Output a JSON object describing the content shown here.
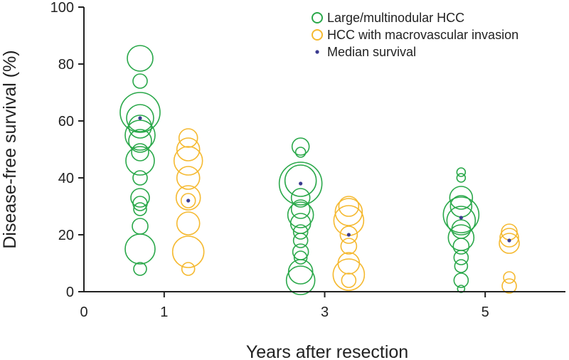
{
  "chart_data": {
    "type": "scatter",
    "xlabel": "Years after resection",
    "ylabel": "Disease-free survival (%)",
    "xlim": [
      0,
      6
    ],
    "ylim": [
      0,
      100
    ],
    "x_ticks": [
      "0",
      "1",
      "3",
      "5"
    ],
    "x_tick_values": [
      0,
      1,
      3,
      5
    ],
    "y_ticks": [
      "0",
      "20",
      "40",
      "60",
      "80",
      "100"
    ],
    "y_tick_values": [
      0,
      20,
      40,
      60,
      80,
      100
    ],
    "grid": false,
    "legend_position": "top-right",
    "colors": {
      "large": "#2aa84a",
      "macro": "#f5b930",
      "median": "#3b3b8f",
      "axis": "#222222"
    },
    "legend": [
      {
        "label": "Large/multinodular HCC",
        "marker": "circle",
        "color": "#2aa84a"
      },
      {
        "label": "HCC with macrovascular invasion",
        "marker": "circle",
        "color": "#f5b930"
      },
      {
        "label": "Median survival",
        "marker": "dot",
        "color": "#3b3b8f"
      }
    ],
    "series": [
      {
        "name": "Large/multinodular HCC",
        "color": "#2aa84a",
        "points": [
          {
            "x": 0.7,
            "y": 82,
            "size": 3.6
          },
          {
            "x": 0.7,
            "y": 74,
            "size": 2.0
          },
          {
            "x": 0.7,
            "y": 63,
            "size": 5.6
          },
          {
            "x": 0.7,
            "y": 61,
            "size": 3.8
          },
          {
            "x": 0.7,
            "y": 58,
            "size": 3.2
          },
          {
            "x": 0.7,
            "y": 55,
            "size": 4.2
          },
          {
            "x": 0.7,
            "y": 53,
            "size": 3.2
          },
          {
            "x": 0.7,
            "y": 49,
            "size": 2.4
          },
          {
            "x": 0.7,
            "y": 46,
            "size": 4.0
          },
          {
            "x": 0.7,
            "y": 40,
            "size": 2.0
          },
          {
            "x": 0.7,
            "y": 33,
            "size": 2.6
          },
          {
            "x": 0.7,
            "y": 31,
            "size": 2.0
          },
          {
            "x": 0.7,
            "y": 29,
            "size": 1.8
          },
          {
            "x": 0.7,
            "y": 23,
            "size": 2.2
          },
          {
            "x": 0.7,
            "y": 15,
            "size": 4.2
          },
          {
            "x": 0.7,
            "y": 8,
            "size": 1.8
          },
          {
            "x": 2.7,
            "y": 51,
            "size": 2.4
          },
          {
            "x": 2.7,
            "y": 49,
            "size": 1.4
          },
          {
            "x": 2.7,
            "y": 39,
            "size": 4.4
          },
          {
            "x": 2.7,
            "y": 38,
            "size": 6.0
          },
          {
            "x": 2.7,
            "y": 33,
            "size": 2.6
          },
          {
            "x": 2.7,
            "y": 29,
            "size": 2.6
          },
          {
            "x": 2.7,
            "y": 27,
            "size": 3.6
          },
          {
            "x": 2.7,
            "y": 24,
            "size": 2.8
          },
          {
            "x": 2.7,
            "y": 21,
            "size": 2.0
          },
          {
            "x": 2.7,
            "y": 18,
            "size": 2.0
          },
          {
            "x": 2.7,
            "y": 14,
            "size": 2.2
          },
          {
            "x": 2.7,
            "y": 12,
            "size": 1.8
          },
          {
            "x": 2.7,
            "y": 7,
            "size": 3.4
          },
          {
            "x": 2.7,
            "y": 4,
            "size": 4.0
          },
          {
            "x": 4.7,
            "y": 42,
            "size": 1.2
          },
          {
            "x": 4.7,
            "y": 40,
            "size": 1.2
          },
          {
            "x": 4.7,
            "y": 33,
            "size": 3.2
          },
          {
            "x": 4.7,
            "y": 30,
            "size": 3.0
          },
          {
            "x": 4.7,
            "y": 27,
            "size": 5.0
          },
          {
            "x": 4.7,
            "y": 25,
            "size": 4.0
          },
          {
            "x": 4.7,
            "y": 22,
            "size": 2.6
          },
          {
            "x": 4.7,
            "y": 19,
            "size": 3.6
          },
          {
            "x": 4.7,
            "y": 16,
            "size": 2.2
          },
          {
            "x": 4.7,
            "y": 12,
            "size": 2.0
          },
          {
            "x": 4.7,
            "y": 9,
            "size": 1.8
          },
          {
            "x": 4.7,
            "y": 4,
            "size": 2.0
          },
          {
            "x": 4.7,
            "y": 1,
            "size": 1.0
          }
        ]
      },
      {
        "name": "HCC with macrovascular invasion",
        "color": "#f5b930",
        "points": [
          {
            "x": 1.3,
            "y": 54,
            "size": 2.6
          },
          {
            "x": 1.3,
            "y": 50,
            "size": 3.2
          },
          {
            "x": 1.3,
            "y": 46,
            "size": 4.0
          },
          {
            "x": 1.3,
            "y": 40,
            "size": 3.2
          },
          {
            "x": 1.3,
            "y": 33,
            "size": 3.4
          },
          {
            "x": 1.3,
            "y": 32,
            "size": 2.0
          },
          {
            "x": 1.3,
            "y": 24,
            "size": 3.2
          },
          {
            "x": 1.3,
            "y": 14,
            "size": 4.4
          },
          {
            "x": 1.3,
            "y": 8,
            "size": 1.8
          },
          {
            "x": 3.3,
            "y": 30,
            "size": 2.8
          },
          {
            "x": 3.3,
            "y": 28,
            "size": 3.8
          },
          {
            "x": 3.3,
            "y": 25,
            "size": 4.2
          },
          {
            "x": 3.3,
            "y": 20,
            "size": 2.4
          },
          {
            "x": 3.3,
            "y": 16,
            "size": 2.2
          },
          {
            "x": 3.3,
            "y": 10,
            "size": 3.0
          },
          {
            "x": 3.3,
            "y": 6,
            "size": 4.4
          },
          {
            "x": 3.3,
            "y": 4,
            "size": 2.0
          },
          {
            "x": 5.3,
            "y": 21,
            "size": 2.2
          },
          {
            "x": 5.3,
            "y": 19,
            "size": 2.6
          },
          {
            "x": 5.3,
            "y": 17,
            "size": 2.8
          },
          {
            "x": 5.3,
            "y": 5,
            "size": 1.6
          },
          {
            "x": 5.3,
            "y": 2,
            "size": 2.0
          }
        ]
      },
      {
        "name": "Median survival",
        "color": "#3b3b8f",
        "points": [
          {
            "x": 0.7,
            "y": 61
          },
          {
            "x": 1.3,
            "y": 32
          },
          {
            "x": 2.7,
            "y": 38
          },
          {
            "x": 3.3,
            "y": 20
          },
          {
            "x": 4.7,
            "y": 26
          },
          {
            "x": 5.3,
            "y": 18
          }
        ]
      }
    ]
  }
}
